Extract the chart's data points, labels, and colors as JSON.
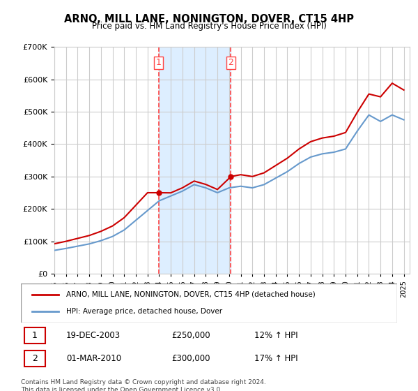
{
  "title": "ARNO, MILL LANE, NONINGTON, DOVER, CT15 4HP",
  "subtitle": "Price paid vs. HM Land Registry's House Price Index (HPI)",
  "legend_line1": "ARNO, MILL LANE, NONINGTON, DOVER, CT15 4HP (detached house)",
  "legend_line2": "HPI: Average price, detached house, Dover",
  "table": [
    {
      "num": "1",
      "date": "19-DEC-2003",
      "price": "£250,000",
      "hpi": "12% ↑ HPI"
    },
    {
      "num": "2",
      "date": "01-MAR-2010",
      "price": "£300,000",
      "hpi": "17% ↑ HPI"
    }
  ],
  "footnote": "Contains HM Land Registry data © Crown copyright and database right 2024.\nThis data is licensed under the Open Government Licence v3.0.",
  "vline1_x": 2003.96,
  "vline2_x": 2010.16,
  "sale1_x": 2003.96,
  "sale1_y": 250000,
  "sale2_x": 2010.16,
  "sale2_y": 300000,
  "hpi_color": "#6699cc",
  "price_color": "#cc0000",
  "vline_color": "#ff4444",
  "bg_color": "#ddeeff",
  "grid_color": "#cccccc",
  "ylim": [
    0,
    700000
  ],
  "xlim_start": 1995.0,
  "xlim_end": 2025.5
}
